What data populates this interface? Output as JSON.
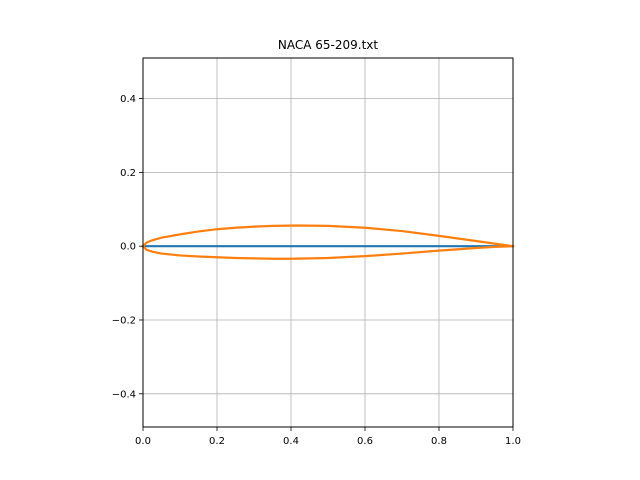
{
  "chart_data": {
    "type": "line",
    "title": "NACA 65-209.txt",
    "xlabel": "",
    "ylabel": "",
    "xlim": [
      0.0,
      1.0
    ],
    "ylim": [
      -0.49,
      0.51
    ],
    "x_ticks": [
      0.0,
      0.2,
      0.4,
      0.6,
      0.8,
      1.0
    ],
    "x_tick_labels": [
      "0.0",
      "0.2",
      "0.4",
      "0.6",
      "0.8",
      "1.0"
    ],
    "y_ticks": [
      -0.4,
      -0.2,
      0.0,
      0.2,
      0.4
    ],
    "y_tick_labels": [
      "−0.4",
      "−0.2",
      "0.0",
      "0.2",
      "0.4"
    ],
    "grid": true,
    "legend": "none",
    "series": [
      {
        "color": "#1f77b4",
        "x": [
          0.0,
          1.0
        ],
        "y": [
          0.0,
          0.0
        ]
      },
      {
        "color": "#ff7f0e",
        "x": [
          1.0,
          0.95,
          0.9,
          0.8,
          0.7,
          0.6,
          0.5,
          0.42,
          0.35,
          0.3,
          0.25,
          0.2,
          0.15,
          0.1,
          0.05,
          0.025,
          0.01,
          0.0,
          0.01,
          0.025,
          0.05,
          0.1,
          0.15,
          0.2,
          0.25,
          0.3,
          0.35,
          0.4,
          0.5,
          0.6,
          0.7,
          0.8,
          0.9,
          0.95,
          1.0
        ],
        "y": [
          0.0,
          0.007,
          0.014,
          0.028,
          0.041,
          0.05,
          0.055,
          0.056,
          0.055,
          0.053,
          0.05,
          0.046,
          0.04,
          0.032,
          0.023,
          0.016,
          0.01,
          0.0,
          -0.01,
          -0.015,
          -0.02,
          -0.025,
          -0.028,
          -0.03,
          -0.032,
          -0.033,
          -0.034,
          -0.034,
          -0.032,
          -0.027,
          -0.02,
          -0.012,
          -0.005,
          -0.002,
          0.0
        ]
      }
    ]
  }
}
